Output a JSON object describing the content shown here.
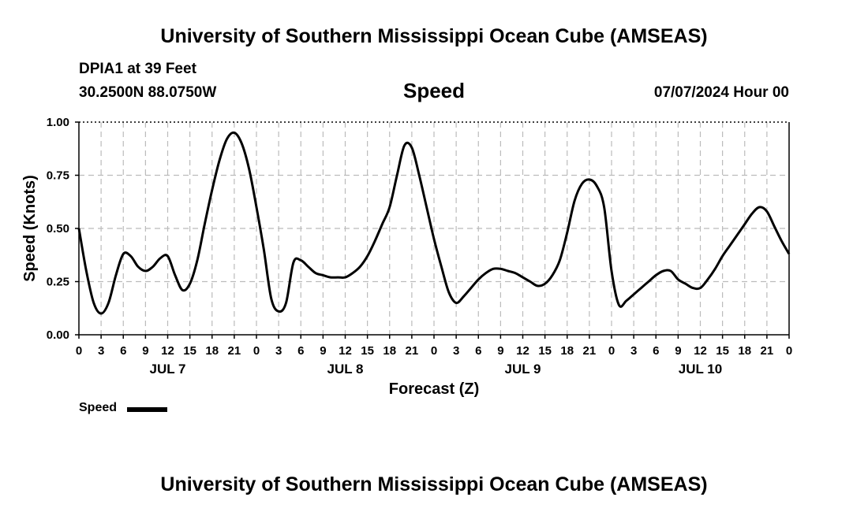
{
  "header": {
    "title_top": "University of Southern Mississippi Ocean Cube (AMSEAS)",
    "station": "DPIA1 at 39 Feet",
    "coords": "30.2500N  88.0750W",
    "chart_title": "Speed",
    "date_hour": "07/07/2024 Hour 00",
    "title_bottom": "University of Southern Mississippi Ocean Cube (AMSEAS)"
  },
  "legend": {
    "label": "Speed",
    "color": "#000000"
  },
  "chart_data": {
    "type": "line",
    "title": "Speed",
    "xlabel": "Forecast (Z)",
    "ylabel": "Speed (Knots)",
    "xlim": [
      0,
      96
    ],
    "ylim": [
      0,
      1
    ],
    "grid": true,
    "y_ticks": [
      0,
      0.25,
      0.5,
      0.75,
      1.0
    ],
    "y_tick_labels": [
      "0.00",
      "0.25",
      "0.50",
      "0.75",
      "1.00"
    ],
    "x_ticks": [
      0,
      3,
      6,
      9,
      12,
      15,
      18,
      21,
      24,
      27,
      30,
      33,
      36,
      39,
      42,
      45,
      48,
      51,
      54,
      57,
      60,
      63,
      66,
      69,
      72,
      75,
      78,
      81,
      84,
      87,
      90,
      93,
      96
    ],
    "x_tick_labels": [
      "0",
      "3",
      "6",
      "9",
      "12",
      "15",
      "18",
      "21",
      "0",
      "3",
      "6",
      "9",
      "12",
      "15",
      "18",
      "21",
      "0",
      "3",
      "6",
      "9",
      "12",
      "15",
      "18",
      "21",
      "0",
      "3",
      "6",
      "9",
      "12",
      "15",
      "18",
      "21",
      "0"
    ],
    "day_labels": [
      {
        "label": "JUL 7",
        "x": 12
      },
      {
        "label": "JUL 8",
        "x": 36
      },
      {
        "label": "JUL 9",
        "x": 60
      },
      {
        "label": "JUL 10",
        "x": 84
      }
    ],
    "series": [
      {
        "name": "Speed",
        "x": [
          0,
          1,
          2,
          3,
          4,
          5,
          6,
          7,
          8,
          9,
          10,
          11,
          12,
          13,
          14,
          15,
          16,
          17,
          18,
          19,
          20,
          21,
          22,
          23,
          24,
          25,
          26,
          27,
          28,
          29,
          30,
          31,
          32,
          33,
          34,
          35,
          36,
          37,
          38,
          39,
          40,
          41,
          42,
          43,
          44,
          45,
          46,
          47,
          48,
          49,
          50,
          51,
          52,
          53,
          54,
          55,
          56,
          57,
          58,
          59,
          60,
          61,
          62,
          63,
          64,
          65,
          66,
          67,
          68,
          69,
          70,
          71,
          72,
          73,
          74,
          75,
          76,
          77,
          78,
          79,
          80,
          81,
          82,
          83,
          84,
          85,
          86,
          87,
          88,
          89,
          90,
          91,
          92,
          93,
          94,
          95,
          96
        ],
        "values": [
          0.5,
          0.3,
          0.15,
          0.1,
          0.15,
          0.28,
          0.38,
          0.37,
          0.32,
          0.3,
          0.32,
          0.36,
          0.37,
          0.28,
          0.21,
          0.24,
          0.35,
          0.52,
          0.68,
          0.82,
          0.92,
          0.95,
          0.9,
          0.78,
          0.6,
          0.4,
          0.17,
          0.11,
          0.15,
          0.34,
          0.35,
          0.32,
          0.29,
          0.28,
          0.27,
          0.27,
          0.27,
          0.29,
          0.32,
          0.37,
          0.44,
          0.52,
          0.6,
          0.75,
          0.89,
          0.88,
          0.75,
          0.6,
          0.45,
          0.32,
          0.2,
          0.15,
          0.18,
          0.22,
          0.26,
          0.29,
          0.31,
          0.31,
          0.3,
          0.29,
          0.27,
          0.25,
          0.23,
          0.24,
          0.28,
          0.35,
          0.48,
          0.63,
          0.71,
          0.73,
          0.7,
          0.6,
          0.3,
          0.14,
          0.16,
          0.19,
          0.22,
          0.25,
          0.28,
          0.3,
          0.3,
          0.26,
          0.24,
          0.22,
          0.22,
          0.26,
          0.31,
          0.37,
          0.42,
          0.47,
          0.52,
          0.57,
          0.6,
          0.58,
          0.51,
          0.44,
          0.38
        ]
      }
    ]
  }
}
